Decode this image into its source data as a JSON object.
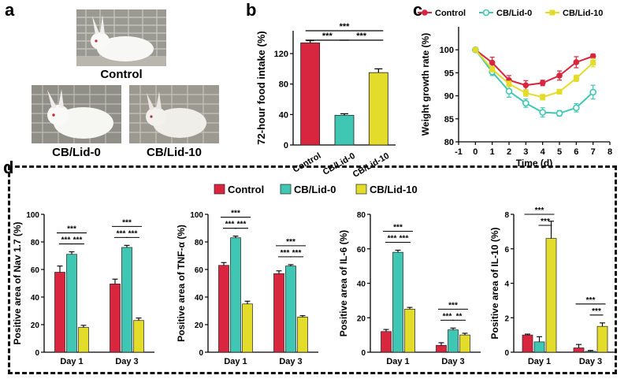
{
  "panels": {
    "a": "a",
    "b": "b",
    "c": "c",
    "d": "d"
  },
  "photos": {
    "control": "Control",
    "cb0": "CB/Lid-0",
    "cb10": "CB/Lid-10"
  },
  "colors": {
    "control": "#d7263d",
    "cb0": "#3fc7b4",
    "cb10": "#e3dc2a",
    "cb0_line": "#3fc7b4"
  },
  "chart_data": [
    {
      "id": "b",
      "type": "bar",
      "ylabel": "72-hour food intake (%)",
      "categories": [
        "Control",
        "CB/Lid-0",
        "CB/Lid-10"
      ],
      "values": [
        134,
        39,
        95
      ],
      "errors": [
        3,
        2,
        5
      ],
      "ylim": [
        0,
        150
      ],
      "yticks": [
        0,
        40,
        80,
        120
      ],
      "significance": [
        {
          "from": 0,
          "to": 1,
          "label": "***"
        },
        {
          "from": 1,
          "to": 2,
          "label": "***"
        },
        {
          "from": 0,
          "to": 2,
          "label": "***"
        }
      ]
    },
    {
      "id": "c",
      "type": "line",
      "xlabel": "Time (d)",
      "ylabel": "Weight growth rate (%)",
      "xlim": [
        -1,
        8
      ],
      "ylim": [
        80,
        105
      ],
      "xticks": [
        -1,
        0,
        1,
        2,
        3,
        4,
        5,
        6,
        7,
        8
      ],
      "yticks": [
        80,
        85,
        90,
        95,
        100
      ],
      "x": [
        0,
        1,
        2,
        3,
        4,
        5,
        6,
        7
      ],
      "series": [
        {
          "name": "Control",
          "key": "control",
          "values": [
            100,
            97.2,
            93.4,
            92.3,
            92.8,
            94.4,
            97.3,
            98.6
          ],
          "errors": [
            0,
            1.2,
            1.0,
            1.0,
            0.6,
            1.0,
            1.2,
            0.5
          ]
        },
        {
          "name": "CB/Lid-0",
          "key": "cb0",
          "values": [
            100,
            95.2,
            91.0,
            88.4,
            86.4,
            86.2,
            87.4,
            90.8
          ],
          "errors": [
            0,
            0.8,
            1.3,
            0.9,
            1.0,
            0.6,
            0.9,
            1.5
          ]
        },
        {
          "name": "CB/Lid-10",
          "key": "cb10",
          "values": [
            100,
            95.8,
            92.6,
            90.6,
            89.7,
            90.9,
            93.8,
            97.2
          ],
          "errors": [
            0,
            0.6,
            0.6,
            0.7,
            0.6,
            0.5,
            0.7,
            0.9
          ]
        }
      ]
    },
    {
      "id": "d1",
      "type": "bar",
      "ylabel": "Positive  area of Nav 1.7 (%)",
      "categories": [
        "Day 1",
        "Day 3"
      ],
      "series": [
        {
          "name": "Control",
          "key": "control",
          "values": [
            58,
            49.5
          ],
          "errors": [
            4.5,
            3.5
          ]
        },
        {
          "name": "CB/Lid-0",
          "key": "cb0",
          "values": [
            71,
            76
          ],
          "errors": [
            1.8,
            1.5
          ]
        },
        {
          "name": "CB/Lid-10",
          "key": "cb10",
          "values": [
            18,
            23
          ],
          "errors": [
            1.5,
            1.8
          ]
        }
      ],
      "ylim": [
        0,
        100
      ],
      "yticks": [
        0,
        20,
        40,
        60,
        80,
        100
      ],
      "significance": [
        {
          "cat": 0,
          "from": 0,
          "to": 1,
          "label": "***",
          "level": 0
        },
        {
          "cat": 0,
          "from": 1,
          "to": 2,
          "label": "***",
          "level": 0
        },
        {
          "cat": 0,
          "from": 0,
          "to": 2,
          "label": "***",
          "level": 1
        },
        {
          "cat": 1,
          "from": 0,
          "to": 1,
          "label": "***",
          "level": 0
        },
        {
          "cat": 1,
          "from": 1,
          "to": 2,
          "label": "***",
          "level": 0
        },
        {
          "cat": 1,
          "from": 0,
          "to": 2,
          "label": "***",
          "level": 1
        }
      ]
    },
    {
      "id": "d2",
      "type": "bar",
      "ylabel": "Positive  area of TNF-α (%)",
      "categories": [
        "Day 1",
        "Day 3"
      ],
      "series": [
        {
          "name": "Control",
          "key": "control",
          "values": [
            63,
            57
          ],
          "errors": [
            2,
            2
          ]
        },
        {
          "name": "CB/Lid-0",
          "key": "cb0",
          "values": [
            83,
            62.5
          ],
          "errors": [
            1.2,
            1
          ]
        },
        {
          "name": "CB/Lid-10",
          "key": "cb10",
          "values": [
            35,
            25.5
          ],
          "errors": [
            2,
            1
          ]
        }
      ],
      "ylim": [
        0,
        100
      ],
      "yticks": [
        0,
        20,
        40,
        60,
        80,
        100
      ],
      "significance": [
        {
          "cat": 0,
          "from": 0,
          "to": 1,
          "label": "***",
          "level": 0
        },
        {
          "cat": 0,
          "from": 1,
          "to": 2,
          "label": "***",
          "level": 0
        },
        {
          "cat": 0,
          "from": 0,
          "to": 2,
          "label": "***",
          "level": 1
        },
        {
          "cat": 1,
          "from": 0,
          "to": 1,
          "label": "***",
          "level": 0
        },
        {
          "cat": 1,
          "from": 1,
          "to": 2,
          "label": "***",
          "level": 0
        },
        {
          "cat": 1,
          "from": 0,
          "to": 2,
          "label": "***",
          "level": 1
        }
      ]
    },
    {
      "id": "d3",
      "type": "bar",
      "ylabel": "Positive  area of IL-6 (%)",
      "categories": [
        "Day 1",
        "Day 3"
      ],
      "series": [
        {
          "name": "Control",
          "key": "control",
          "values": [
            12,
            4
          ],
          "errors": [
            1.2,
            1.5
          ]
        },
        {
          "name": "CB/Lid-0",
          "key": "cb0",
          "values": [
            58,
            13
          ],
          "errors": [
            1.2,
            1
          ]
        },
        {
          "name": "CB/Lid-10",
          "key": "cb10",
          "values": [
            25,
            10
          ],
          "errors": [
            1,
            1
          ]
        }
      ],
      "ylim": [
        0,
        80
      ],
      "yticks": [
        0,
        20,
        40,
        60,
        80
      ],
      "significance": [
        {
          "cat": 0,
          "from": 0,
          "to": 1,
          "label": "***",
          "level": 0
        },
        {
          "cat": 0,
          "from": 1,
          "to": 2,
          "label": "***",
          "level": 0
        },
        {
          "cat": 0,
          "from": 0,
          "to": 2,
          "label": "***",
          "level": 1
        },
        {
          "cat": 1,
          "from": 0,
          "to": 1,
          "label": "***",
          "level": 0
        },
        {
          "cat": 1,
          "from": 1,
          "to": 2,
          "label": "**",
          "level": 0
        },
        {
          "cat": 1,
          "from": 0,
          "to": 2,
          "label": "***",
          "level": 1
        }
      ]
    },
    {
      "id": "d4",
      "type": "bar",
      "ylabel": "Positive  area of IL-10 (%)",
      "categories": [
        "Day 1",
        "Day 3"
      ],
      "series": [
        {
          "name": "Control",
          "key": "control",
          "values": [
            1.0,
            0.25
          ],
          "errors": [
            0.05,
            0.2
          ]
        },
        {
          "name": "CB/Lid-0",
          "key": "cb0",
          "values": [
            0.6,
            0.05
          ],
          "errors": [
            0.3,
            0.05
          ]
        },
        {
          "name": "CB/Lid-10",
          "key": "cb10",
          "values": [
            6.6,
            1.5
          ],
          "errors": [
            1.0,
            0.2
          ]
        }
      ],
      "ylim": [
        0,
        8
      ],
      "yticks": [
        0,
        2,
        4,
        6,
        8
      ],
      "significance": [
        {
          "cat": 0,
          "from": 1,
          "to": 2,
          "label": "***",
          "level": 0
        },
        {
          "cat": 0,
          "from": 0,
          "to": 2,
          "label": "***",
          "level": 1
        },
        {
          "cat": 1,
          "from": 1,
          "to": 2,
          "label": "***",
          "level": 0
        },
        {
          "cat": 1,
          "from": 0,
          "to": 2,
          "label": "***",
          "level": 1
        }
      ]
    }
  ],
  "legend_d": [
    {
      "name": "Control",
      "key": "control"
    },
    {
      "name": "CB/Lid-0",
      "key": "cb0"
    },
    {
      "name": "CB/Lid-10",
      "key": "cb10"
    }
  ]
}
